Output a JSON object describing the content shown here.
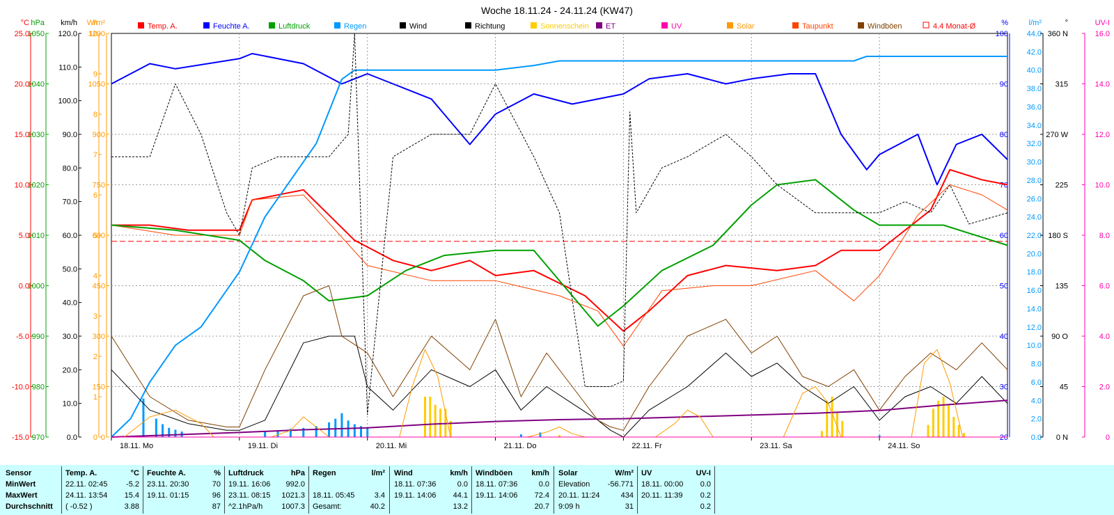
{
  "title": "Woche 18.11.24 - 24.11.24 (KW47)",
  "legend": [
    {
      "name": "Temp. A.",
      "color": "#ff0000"
    },
    {
      "name": "Feuchte A.",
      "color": "#0000ff"
    },
    {
      "name": "Luftdruck",
      "color": "#00a000"
    },
    {
      "name": "Regen",
      "color": "#0099ff"
    },
    {
      "name": "Wind",
      "color": "#000000"
    },
    {
      "name": "Richtung",
      "color": "#000000"
    },
    {
      "name": "Sonnenschein",
      "color": "#ffcc00"
    },
    {
      "name": "ET",
      "color": "#800080"
    },
    {
      "name": "UV",
      "color": "#ff00aa"
    },
    {
      "name": "Solar",
      "color": "#ff9900"
    },
    {
      "name": "Taupunkt",
      "color": "#ff4400"
    },
    {
      "name": "Windböen",
      "color": "#804000"
    },
    {
      "name": "4.4 Monat-Ø",
      "color": "#ff0000"
    }
  ],
  "axes_left": [
    {
      "unit": "°C",
      "color": "#ff0000",
      "ticks": [
        "25.0",
        "20.0",
        "15.0",
        "10.0",
        "5.0",
        "0.0",
        "-5.0",
        "-10.0",
        "-15.0"
      ]
    },
    {
      "unit": "hPa",
      "color": "#00a000",
      "ticks": [
        "1050",
        "1040",
        "1030",
        "1020",
        "1010",
        "1000",
        "990",
        "980",
        "970"
      ]
    },
    {
      "unit": "km/h",
      "color": "#000000",
      "ticks": [
        "120.0",
        "110.0",
        "100.0",
        "90.0",
        "80.0",
        "70.0",
        "60.0",
        "50.0",
        "40.0",
        "30.0",
        "20.0",
        "10.0",
        "0.0"
      ]
    },
    {
      "unit": "h",
      "color": "#ff9900",
      "ticks": [
        "10",
        "9",
        "8",
        "7",
        "6",
        "5",
        "4",
        "3",
        "2",
        "1",
        "0"
      ]
    },
    {
      "unit": "W/m²",
      "color": "#ff9900",
      "ticks": [
        "1200",
        "1050",
        "900",
        "750",
        "600",
        "450",
        "300",
        "150",
        "0"
      ]
    }
  ],
  "axes_right": [
    {
      "unit": "%",
      "color": "#0000ff",
      "ticks": [
        "100",
        "90",
        "80",
        "70",
        "60",
        "50",
        "40",
        "30",
        "20"
      ]
    },
    {
      "unit": "l/m²",
      "color": "#0099ff",
      "ticks": [
        "44.0",
        "42.0",
        "40.0",
        "38.0",
        "36.0",
        "34.0",
        "32.0",
        "30.0",
        "28.0",
        "26.0",
        "24.0",
        "22.0",
        "20.0",
        "18.0",
        "16.0",
        "14.0",
        "12.0",
        "10.0",
        "8.0",
        "6.0",
        "4.0",
        "2.0",
        "0.0"
      ]
    },
    {
      "unit": "°",
      "color": "#000000",
      "ticks": [
        "360 N",
        "315",
        "270 W",
        "225",
        "180 S",
        "135",
        "90 O",
        "45",
        "0 N"
      ]
    },
    {
      "unit": "UV-I",
      "color": "#ff00aa",
      "ticks": [
        "16.0",
        "14.0",
        "12.0",
        "10.0",
        "8.0",
        "6.0",
        "4.0",
        "2.0",
        "0"
      ]
    }
  ],
  "chart_data": {
    "type": "line",
    "title": "Woche 18.11.24 - 24.11.24 (KW47)",
    "x_labels": [
      "18.11. Mo",
      "19.11. Di",
      "20.11. Mi",
      "21.11. Do",
      "22.11. Fr",
      "23.11. Sa",
      "24.11. So"
    ],
    "x_days": 7,
    "ranges": {
      "temp": [
        -15,
        25
      ],
      "hum": [
        20,
        100
      ],
      "press": [
        970,
        1050
      ],
      "wind": [
        0,
        120
      ],
      "sun": [
        0,
        10
      ],
      "solar": [
        0,
        1200
      ],
      "rain": [
        0,
        44
      ],
      "dir": [
        0,
        360
      ],
      "uv": [
        0,
        16
      ]
    },
    "series": [
      {
        "name": "Temp. A.",
        "color": "#ff0000",
        "axis": "temp",
        "width": 2,
        "t": [
          0,
          0.3,
          0.6,
          1.0,
          1.1,
          1.5,
          1.9,
          2.2,
          2.5,
          2.8,
          3.0,
          3.3,
          3.7,
          4.0,
          4.2,
          4.5,
          4.8,
          5.2,
          5.5,
          5.7,
          6.0,
          6.4,
          6.55,
          6.8,
          7.0
        ],
        "v": [
          6.0,
          6.0,
          5.5,
          5.5,
          8.5,
          9.5,
          4.5,
          2.5,
          1.5,
          2.5,
          1.0,
          1.5,
          -1.0,
          -4.5,
          -2.5,
          1.0,
          2.0,
          1.5,
          2.0,
          3.5,
          3.5,
          7.5,
          11.5,
          10.5,
          10.0
        ]
      },
      {
        "name": "Taupunkt",
        "color": "#ff4400",
        "axis": "temp",
        "width": 1,
        "t": [
          0,
          0.5,
          1.0,
          1.1,
          1.5,
          2.0,
          2.5,
          3.0,
          3.5,
          3.8,
          4.0,
          4.3,
          4.7,
          5.0,
          5.5,
          5.8,
          6.0,
          6.3,
          6.55,
          6.8,
          7.0
        ],
        "v": [
          6.0,
          5.0,
          5.0,
          8.5,
          9.0,
          2.0,
          0.5,
          0.5,
          -1.0,
          -2.5,
          -6.0,
          -0.5,
          0.0,
          0.0,
          1.5,
          -1.5,
          1.0,
          7.0,
          10.0,
          9.0,
          7.5
        ]
      },
      {
        "name": "Feuchte A.",
        "color": "#0000ff",
        "axis": "hum",
        "width": 2,
        "t": [
          0,
          0.3,
          0.5,
          1.0,
          1.1,
          1.5,
          1.8,
          2.0,
          2.2,
          2.5,
          2.8,
          3.0,
          3.3,
          3.6,
          4.0,
          4.2,
          4.5,
          4.8,
          5.0,
          5.3,
          5.5,
          5.7,
          5.9,
          6.0,
          6.3,
          6.45,
          6.6,
          6.8,
          7.0
        ],
        "v": [
          90,
          94,
          93,
          95,
          96,
          94,
          90,
          92,
          90,
          87,
          78,
          84,
          88,
          86,
          88,
          91,
          92,
          90,
          91,
          92,
          92,
          80,
          73,
          76,
          80,
          70,
          78,
          80,
          75
        ]
      },
      {
        "name": "Luftdruck",
        "color": "#00a000",
        "axis": "press",
        "width": 2,
        "t": [
          0,
          0.5,
          1.0,
          1.2,
          1.5,
          1.7,
          2.0,
          2.3,
          2.6,
          3.0,
          3.3,
          3.6,
          3.8,
          4.0,
          4.3,
          4.7,
          5.0,
          5.2,
          5.5,
          5.8,
          6.0,
          6.2,
          6.5,
          7.0
        ],
        "v": [
          1012,
          1011,
          1009,
          1005,
          1001,
          997,
          998,
          1003,
          1006,
          1007,
          1007,
          998,
          992,
          996,
          1003,
          1008,
          1016,
          1020,
          1021,
          1015,
          1012,
          1012,
          1012,
          1008
        ]
      },
      {
        "name": "Regen",
        "color": "#0099ff",
        "axis": "rain",
        "width": 2,
        "t": [
          0,
          0.15,
          0.3,
          0.5,
          0.7,
          0.9,
          1.0,
          1.2,
          1.4,
          1.6,
          1.8,
          1.9,
          2.0,
          2.1,
          2.5,
          3.0,
          3.3,
          3.5,
          4.0,
          5.0,
          5.8,
          5.9,
          6.0,
          6.5,
          7.0
        ],
        "v": [
          0,
          2,
          6,
          10,
          12,
          16,
          18,
          24,
          28,
          32,
          39,
          40,
          40,
          40,
          40,
          40,
          40.5,
          41,
          41,
          41,
          41,
          41.5,
          41.5,
          41.5,
          41.5
        ]
      },
      {
        "name": "Wind",
        "color": "#000000",
        "axis": "wind",
        "width": 1,
        "t": [
          0,
          0.3,
          0.6,
          0.9,
          1.0,
          1.2,
          1.5,
          1.7,
          1.9,
          2.0,
          2.2,
          2.5,
          2.8,
          3.0,
          3.2,
          3.4,
          3.6,
          3.8,
          3.9,
          4.0,
          4.2,
          4.5,
          4.8,
          5.0,
          5.2,
          5.4,
          5.6,
          5.8,
          6.0,
          6.2,
          6.4,
          6.6,
          6.8,
          7.0
        ],
        "v": [
          20,
          8,
          4,
          2,
          2,
          5,
          28,
          30,
          30,
          15,
          8,
          20,
          15,
          20,
          8,
          15,
          10,
          5,
          2,
          0,
          8,
          15,
          25,
          18,
          22,
          15,
          10,
          15,
          5,
          12,
          15,
          10,
          18,
          10
        ]
      },
      {
        "name": "Windböen",
        "color": "#804000",
        "axis": "wind",
        "width": 1,
        "t": [
          0,
          0.3,
          0.6,
          0.9,
          1.0,
          1.2,
          1.5,
          1.7,
          1.8,
          2.0,
          2.2,
          2.5,
          2.8,
          3.0,
          3.2,
          3.4,
          3.6,
          3.8,
          3.9,
          4.0,
          4.2,
          4.5,
          4.8,
          5.0,
          5.2,
          5.4,
          5.6,
          5.8,
          6.0,
          6.2,
          6.4,
          6.6,
          6.8,
          7.0
        ],
        "v": [
          30,
          12,
          5,
          3,
          3,
          20,
          42,
          45,
          30,
          25,
          12,
          30,
          20,
          35,
          12,
          25,
          15,
          5,
          3,
          2,
          15,
          30,
          35,
          25,
          30,
          18,
          15,
          20,
          8,
          18,
          25,
          20,
          28,
          20
        ]
      },
      {
        "name": "Richtung",
        "color": "#000000",
        "axis": "dir",
        "width": 1,
        "dash": "3,2",
        "t": [
          0,
          0.3,
          0.5,
          0.7,
          0.9,
          1.0,
          1.1,
          1.3,
          1.5,
          1.7,
          1.85,
          1.9,
          2.0,
          2.2,
          2.5,
          2.8,
          3.0,
          3.3,
          3.5,
          3.7,
          3.9,
          4.0,
          4.05,
          4.1,
          4.3,
          4.5,
          4.8,
          5.0,
          5.2,
          5.5,
          5.8,
          6.0,
          6.2,
          6.4,
          6.55,
          6.7,
          7.0
        ],
        "v": [
          250,
          250,
          315,
          270,
          200,
          180,
          240,
          250,
          250,
          250,
          270,
          360,
          20,
          250,
          270,
          270,
          315,
          250,
          200,
          45,
          45,
          50,
          290,
          200,
          240,
          250,
          270,
          250,
          225,
          200,
          200,
          200,
          210,
          200,
          225,
          190,
          200
        ]
      },
      {
        "name": "ET",
        "color": "#800080",
        "axis": "rain",
        "width": 2,
        "t": [
          0,
          1.0,
          1.5,
          2.0,
          2.5,
          3.0,
          3.5,
          4.0,
          4.5,
          5.0,
          5.5,
          6.0,
          6.5,
          7.0
        ],
        "v": [
          0,
          0.5,
          0.8,
          1.0,
          1.4,
          1.7,
          1.9,
          2.0,
          2.2,
          2.4,
          2.6,
          2.9,
          3.5,
          4.0
        ]
      },
      {
        "name": "Solar",
        "color": "#ff9900",
        "axis": "solar",
        "width": 1,
        "t": [
          0,
          0.1,
          0.3,
          0.5,
          0.7,
          0.8,
          1.0,
          1.25,
          1.4,
          1.5,
          1.6,
          1.7,
          1.9,
          2.25,
          2.35,
          2.45,
          2.55,
          2.65,
          3.0,
          3.25,
          3.4,
          3.5,
          3.6,
          3.7,
          4.0,
          4.25,
          4.4,
          4.5,
          4.6,
          4.7,
          5.0,
          5.25,
          5.4,
          5.5,
          5.6,
          5.7,
          6.0,
          6.25,
          6.35,
          6.45,
          6.55,
          6.65,
          7.0
        ],
        "v": [
          0,
          0,
          60,
          80,
          40,
          0,
          0,
          0,
          20,
          60,
          30,
          0,
          0,
          0,
          150,
          260,
          180,
          0,
          0,
          0,
          15,
          30,
          10,
          0,
          0,
          0,
          40,
          80,
          60,
          0,
          0,
          0,
          130,
          150,
          100,
          0,
          0,
          0,
          220,
          260,
          160,
          0,
          0
        ]
      },
      {
        "name": "UV",
        "color": "#ff00aa",
        "axis": "uv",
        "width": 1,
        "t": [
          0,
          7
        ],
        "v": [
          0,
          0
        ]
      }
    ],
    "sunshine_bars": {
      "color": "#ffcc00",
      "axis": "sun",
      "t": [
        2.45,
        2.49,
        2.53,
        2.57,
        2.61,
        2.65,
        3.5,
        5.55,
        5.59,
        5.63,
        5.67,
        5.71,
        6.38,
        6.42,
        6.46,
        6.5,
        6.54,
        6.58,
        6.62,
        6.66
      ],
      "v": [
        1.0,
        1.0,
        0.8,
        0.7,
        0.7,
        0.4,
        0.05,
        0.15,
        0.9,
        1.0,
        0.6,
        0.4,
        0.3,
        0.7,
        0.9,
        1.0,
        0.8,
        0.5,
        0.3,
        0.1
      ]
    },
    "rain_bars": {
      "color": "#0099ff",
      "axis": "rain",
      "t": [
        0.25,
        0.35,
        0.4,
        0.45,
        0.5,
        0.55,
        1.2,
        1.3,
        1.4,
        1.5,
        1.6,
        1.7,
        1.75,
        1.8,
        1.85,
        1.9,
        1.95,
        2.0,
        3.2,
        3.35,
        6.0
      ],
      "v": [
        4.2,
        2.0,
        1.4,
        1.0,
        0.8,
        0.6,
        0.6,
        0.7,
        0.9,
        1.0,
        1.2,
        1.6,
        2.0,
        2.6,
        1.8,
        1.4,
        1.2,
        1.0,
        0.3,
        0.5,
        0.2
      ]
    },
    "monthly_avg": {
      "color": "#ff0000",
      "axis": "temp",
      "value": 4.4
    }
  },
  "stats": {
    "sensor": {
      "header": "Sensor",
      "rows": [
        "MinWert",
        "MaxWert",
        "Durchschnitt"
      ]
    },
    "temp": {
      "header": "Temp. A.",
      "unit": "°C",
      "rows": [
        {
          "time": "22.11.  02:45",
          "val": "-5.2"
        },
        {
          "time": "24.11.  13:54",
          "val": "15.4"
        },
        {
          "time": "( -0.52 )",
          "val": "3.88"
        }
      ]
    },
    "hum": {
      "header": "Feuchte A.",
      "unit": "%",
      "rows": [
        {
          "time": "23.11.  20:30",
          "val": "70"
        },
        {
          "time": "19.11.  01:15",
          "val": "96"
        },
        {
          "time": "",
          "val": "87"
        }
      ]
    },
    "press": {
      "header": "Luftdruck",
      "unit": "hPa",
      "rows": [
        {
          "time": "19.11.  16:06",
          "val": "992.0"
        },
        {
          "time": "23.11.  08:15",
          "val": "1021.3"
        },
        {
          "time": "^2.1hPa/h",
          "val": "1007.3"
        }
      ]
    },
    "rain": {
      "header": "Regen",
      "unit": "l/m²",
      "rows": [
        {
          "time": "",
          "val": ""
        },
        {
          "time": "18.11.  05:45",
          "val": "3.4"
        },
        {
          "time": "Gesamt:",
          "val": "40.2"
        }
      ]
    },
    "wind": {
      "header": "Wind",
      "unit": "km/h",
      "rows": [
        {
          "time": "18.11.  07:36",
          "val": "0.0"
        },
        {
          "time": "19.11.  14:06",
          "val": "44.1"
        },
        {
          "time": "",
          "val": "13.2"
        }
      ]
    },
    "gust": {
      "header": "Windböen",
      "unit": "km/h",
      "rows": [
        {
          "time": "18.11.  07:36",
          "val": "0.0"
        },
        {
          "time": "19.11.  14:06",
          "val": "72.4"
        },
        {
          "time": "",
          "val": "20.7"
        }
      ]
    },
    "solar": {
      "header": "Solar",
      "unit": "W/m²",
      "rows": [
        {
          "time": "Elevation",
          "val": "-56.771"
        },
        {
          "time": "20.11.  11:24",
          "val": "434"
        },
        {
          "time": "9:09 h",
          "val": "31"
        }
      ]
    },
    "uv": {
      "header": "UV",
      "unit": "UV-I",
      "rows": [
        {
          "time": "18.11.  00:00",
          "val": "0.0"
        },
        {
          "time": "20.11.  11:39",
          "val": "0.2"
        },
        {
          "time": "",
          "val": "0.2"
        }
      ]
    }
  }
}
